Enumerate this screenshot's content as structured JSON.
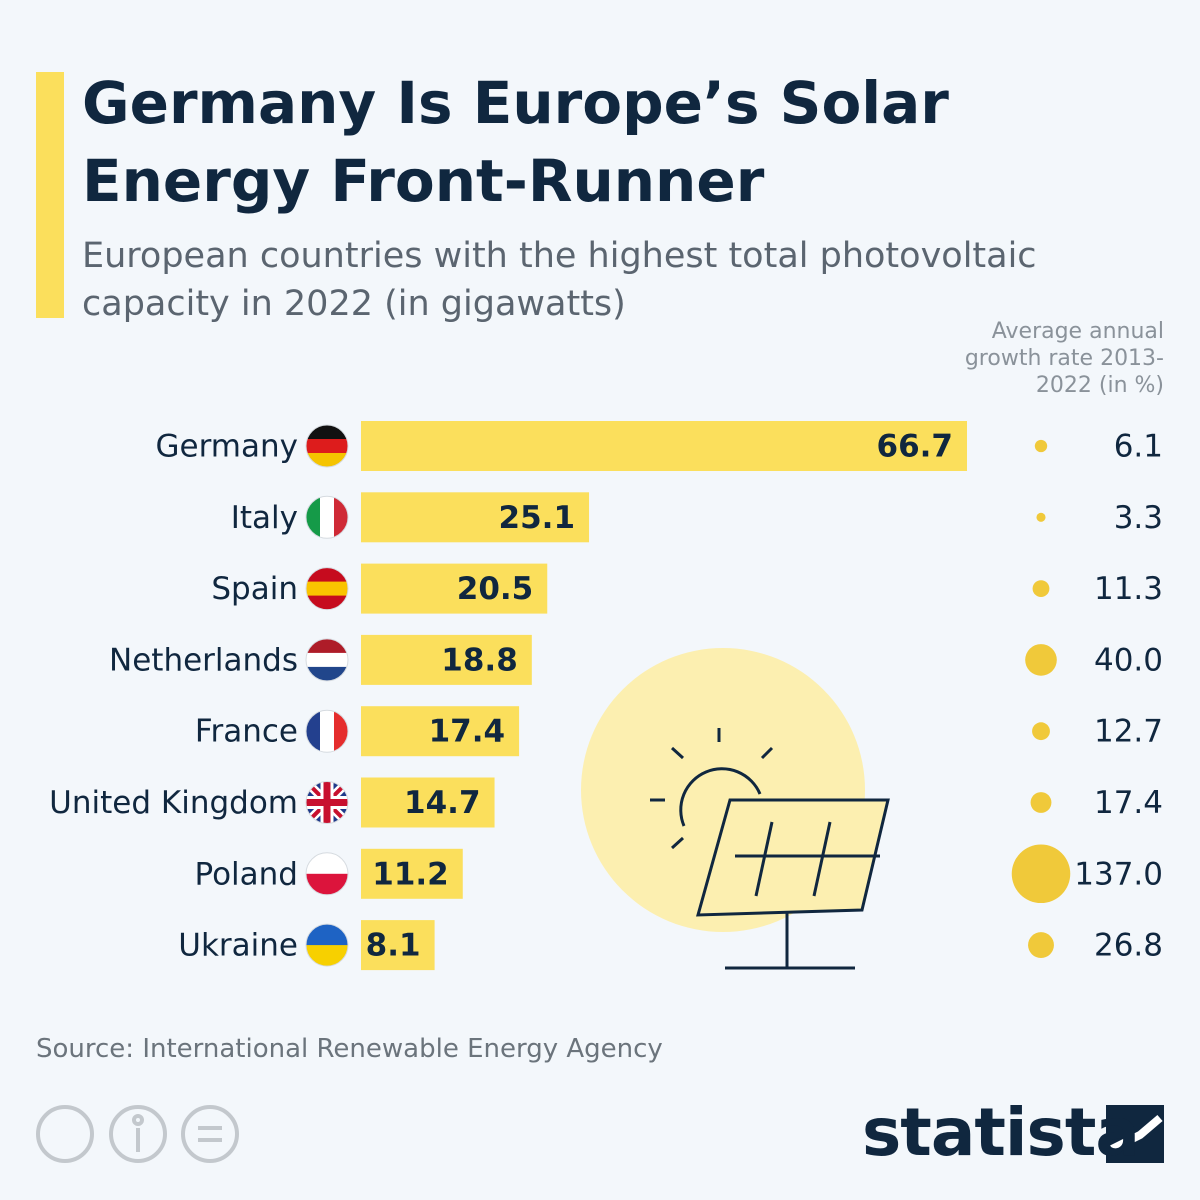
{
  "chart_data": {
    "type": "bar",
    "title": "Germany Is Europe’s Solar Energy Front-Runner",
    "subtitle": "European countries with the highest total photovoltaic capacity in 2022 (in gigawatts)",
    "growth_title": "Average annual growth rate 2013-2022 (in %)",
    "categories": [
      "Germany",
      "Italy",
      "Spain",
      "Netherlands",
      "France",
      "United Kingdom",
      "Poland",
      "Ukraine"
    ],
    "values": [
      66.7,
      25.1,
      20.5,
      18.8,
      17.4,
      14.7,
      11.2,
      8.1
    ],
    "color": "#fbdf5c",
    "growth_values": [
      6.1,
      3.3,
      11.3,
      40,
      12.7,
      17.4,
      137,
      26.8
    ],
    "growth_value_labels": [
      "6.1",
      "3.3",
      "11.3",
      "40.0",
      "12.7",
      "17.4",
      "137.0",
      "26.8"
    ],
    "growth_color": "#f0c93a",
    "source": "Source: International Renewable Energy Agency",
    "brand": "statista"
  }
}
